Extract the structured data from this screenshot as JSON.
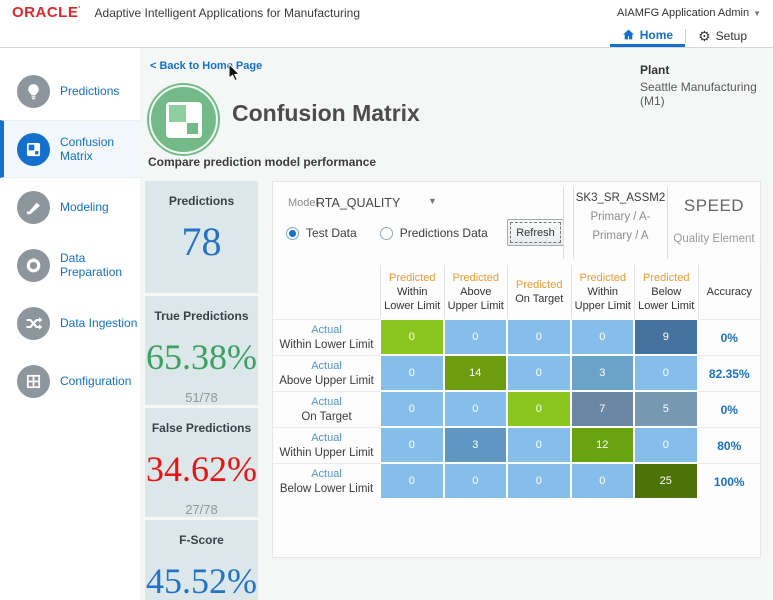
{
  "topbar": {
    "brand": "ORACLE",
    "app_title": "Adaptive Intelligent Applications for Manufacturing",
    "user_menu": "AIAMFG Application Admin"
  },
  "tabbar": {
    "tabs": [
      {
        "label": "Home",
        "icon": "home-icon",
        "selected": true
      },
      {
        "label": "Setup",
        "icon": "gear-icon",
        "selected": false
      }
    ]
  },
  "sidebar": {
    "items": [
      {
        "label": "Predictions",
        "icon": "lightbulb-icon",
        "selected": false
      },
      {
        "label": "Confusion Matrix",
        "icon": "confusion-matrix-icon",
        "selected": true
      },
      {
        "label": "Modeling",
        "icon": "modeling-icon",
        "selected": false
      },
      {
        "label": "Data Preparation",
        "icon": "data-preparation-icon",
        "selected": false
      },
      {
        "label": "Data Ingestion",
        "icon": "data-ingestion-icon",
        "selected": false
      },
      {
        "label": "Configuration",
        "icon": "configuration-icon",
        "selected": false
      }
    ]
  },
  "header": {
    "back_link": "< Back to Home Page",
    "title": "Confusion Matrix",
    "subtitle": "Compare prediction model performance",
    "plant_label": "Plant",
    "plant_value": "Seattle Manufacturing (M1)"
  },
  "stats": [
    {
      "label": "Predictions",
      "value": "78",
      "color": "#2472c4"
    },
    {
      "label": "True Predictions",
      "value": "65.38%",
      "fraction": "51/78",
      "color": "#3d9f62"
    },
    {
      "label": "False Predictions",
      "value": "34.62%",
      "fraction": "27/78",
      "color": "#e91313"
    },
    {
      "label": "F-Score",
      "value": "45.52%",
      "color": "#2472c4"
    }
  ],
  "controls": {
    "model_label": "Model",
    "model_value": "RTA_QUALITY",
    "radios": [
      {
        "label": "Test Data",
        "selected": true
      },
      {
        "label": "Predictions Data",
        "selected": false
      }
    ],
    "refresh_label": "Refresh",
    "item": {
      "name": "SK3_SR_ASSM2",
      "line1": "Primary / A-",
      "line2": "Primary / A"
    },
    "quality": {
      "value": "SPEED",
      "label": "Quality Element"
    }
  },
  "matrix": {
    "col_header_prefix": "Predicted",
    "row_header_prefix": "Actual",
    "accuracy_header": "Accuracy",
    "categories": [
      "Within Lower Limit",
      "Above Upper Limit",
      "On Target",
      "Within Upper Limit",
      "Below Lower Limit"
    ],
    "palette": {
      "off_diagonal_zero": "#85bee8",
      "accent_blue": "#1470cc",
      "header_orange": "#ed9b33"
    },
    "rows": [
      {
        "label": "Within Lower Limit",
        "accuracy": "0%",
        "cells": [
          {
            "v": "0",
            "bg": "#8bc61e"
          },
          {
            "v": "0",
            "bg": "#85bee8"
          },
          {
            "v": "0",
            "bg": "#85bee8"
          },
          {
            "v": "0",
            "bg": "#85bee8"
          },
          {
            "v": "9",
            "bg": "#45739f"
          }
        ]
      },
      {
        "label": "Above Upper Limit",
        "accuracy": "82.35%",
        "cells": [
          {
            "v": "0",
            "bg": "#85bee8"
          },
          {
            "v": "14",
            "bg": "#6c9d0f"
          },
          {
            "v": "0",
            "bg": "#85bee8"
          },
          {
            "v": "3",
            "bg": "#69a3c8"
          },
          {
            "v": "0",
            "bg": "#85bee8"
          }
        ]
      },
      {
        "label": "On Target",
        "accuracy": "0%",
        "cells": [
          {
            "v": "0",
            "bg": "#85bee8"
          },
          {
            "v": "0",
            "bg": "#85bee8"
          },
          {
            "v": "0",
            "bg": "#8bc61e"
          },
          {
            "v": "7",
            "bg": "#6c87a6"
          },
          {
            "v": "5",
            "bg": "#7699af"
          }
        ]
      },
      {
        "label": "Within Upper Limit",
        "accuracy": "80%",
        "cells": [
          {
            "v": "0",
            "bg": "#85bee8"
          },
          {
            "v": "3",
            "bg": "#6096c2"
          },
          {
            "v": "0",
            "bg": "#85bee8"
          },
          {
            "v": "12",
            "bg": "#68a411"
          },
          {
            "v": "0",
            "bg": "#85bee8"
          }
        ]
      },
      {
        "label": "Below Lower Limit",
        "accuracy": "100%",
        "cells": [
          {
            "v": "0",
            "bg": "#85bee8"
          },
          {
            "v": "0",
            "bg": "#85bee8"
          },
          {
            "v": "0",
            "bg": "#85bee8"
          },
          {
            "v": "0",
            "bg": "#85bee8"
          },
          {
            "v": "25",
            "bg": "#4b7307"
          }
        ]
      }
    ]
  }
}
